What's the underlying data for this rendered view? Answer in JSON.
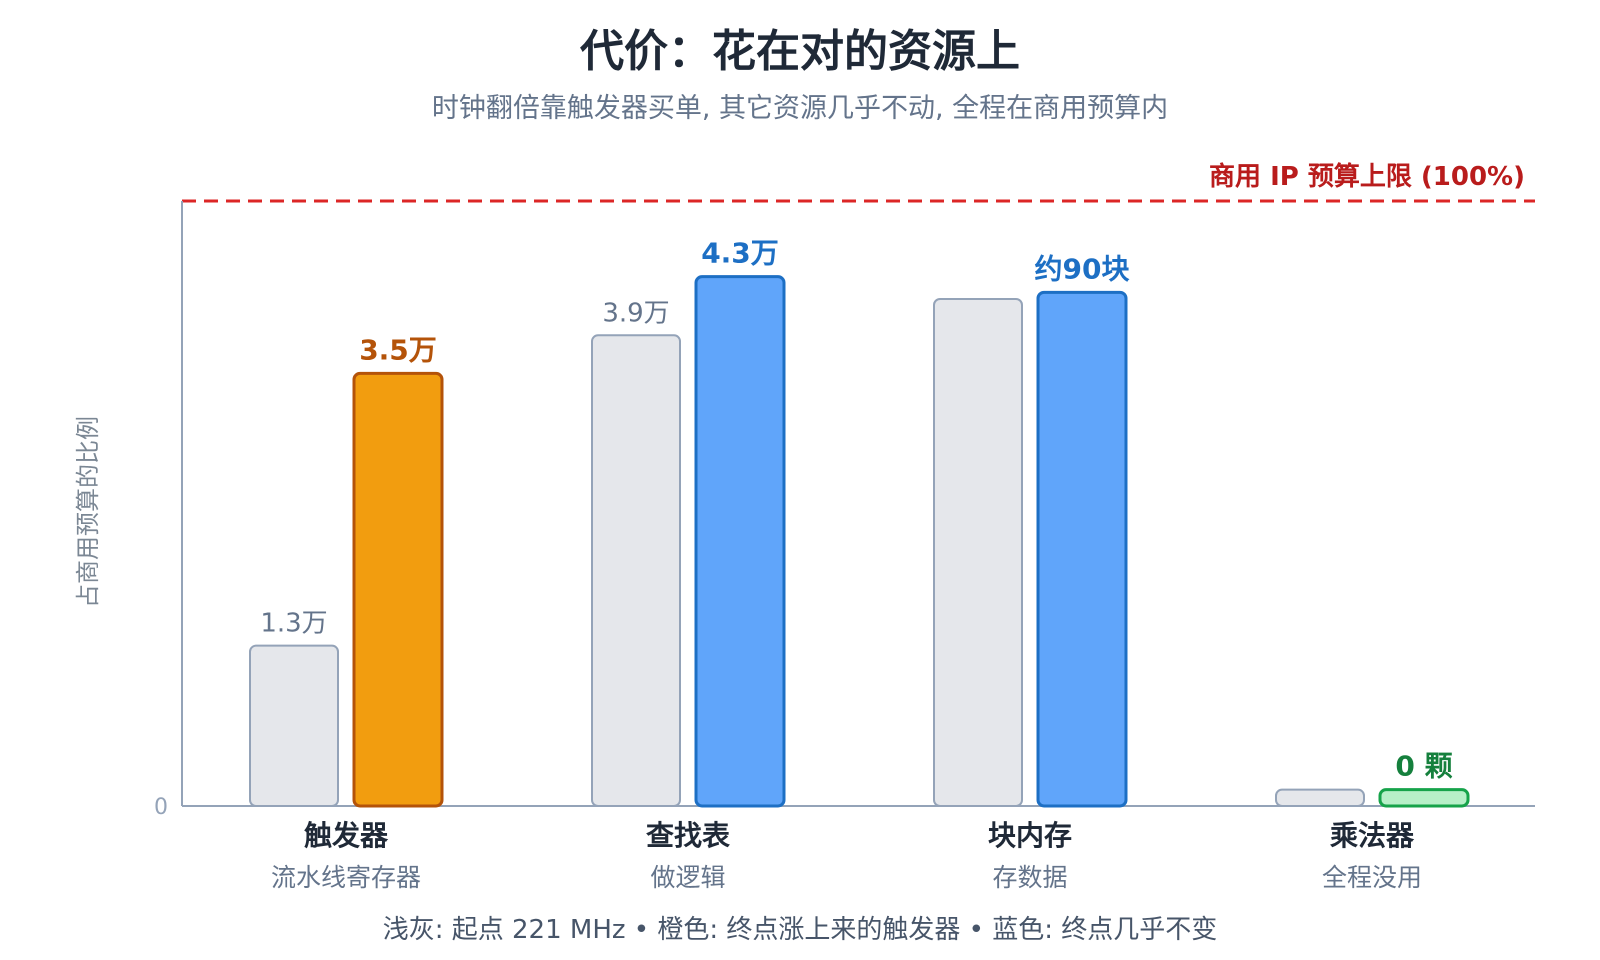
{
  "chart_data": {
    "type": "bar",
    "title": "代价：花在对的资源上",
    "subtitle": "时钟翻倍靠触发器买单, 其它资源几乎不动, 全程在商用预算内",
    "ylabel": "占商用预算的比例",
    "ylim": [
      0,
      100
    ],
    "yticks": [
      "0"
    ],
    "reference_line": {
      "label": "商用 IP 预算上限 (100%)",
      "value": 100,
      "color": "#dc2626",
      "style": "dashed"
    },
    "categories": [
      {
        "name": "触发器",
        "sub": "流水线寄存器",
        "start": 26.5,
        "end": 71.5,
        "start_label": "1.3万",
        "end_label": "3.5万",
        "end_color": "#f29d0f",
        "end_stroke": "#b45309",
        "end_label_color": "#b45309"
      },
      {
        "name": "查找表",
        "sub": "做逻辑",
        "start": 77.8,
        "end": 87.5,
        "start_label": "3.9万",
        "end_label": "4.3万",
        "end_color": "#60a5fa",
        "end_stroke": "#1d6fc4",
        "end_label_color": "#1d6fc4"
      },
      {
        "name": "块内存",
        "sub": "存数据",
        "start": 83.8,
        "end": 84.9,
        "start_label": "",
        "end_label": "约90块",
        "end_color": "#60a5fa",
        "end_stroke": "#1d6fc4",
        "end_label_color": "#1d6fc4"
      },
      {
        "name": "乘法器",
        "sub": "全程没用",
        "start": 2.7,
        "end": 2.7,
        "start_label": "",
        "end_label": "0 颗",
        "end_color": "#b7f0c8",
        "end_stroke": "#16a34a",
        "end_label_color": "#15803d"
      }
    ],
    "series": [
      {
        "name": "起点 221 MHz",
        "color": "#e5e7eb"
      },
      {
        "name": "终点",
        "color": "#60a5fa"
      }
    ],
    "footnote": "浅灰: 起点 221 MHz  •  橙色: 终点涨上来的触发器  •  蓝色: 终点几乎不变",
    "colors": {
      "start_fill": "#e5e7eb",
      "start_stroke": "#94a3b8",
      "axis": "#94a3b8"
    }
  }
}
